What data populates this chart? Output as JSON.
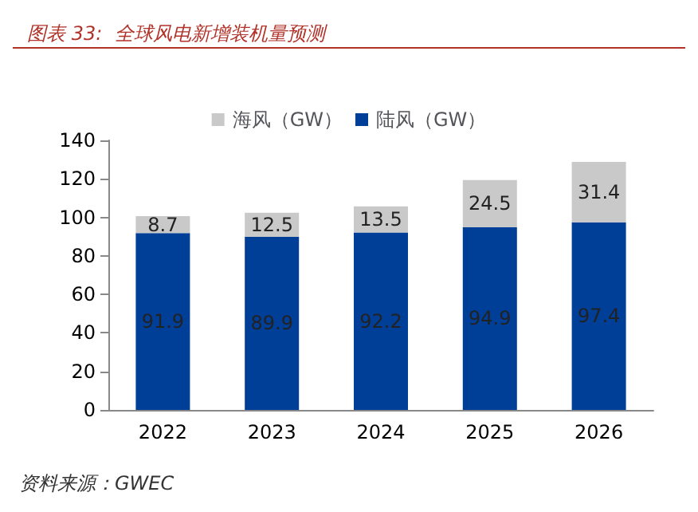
{
  "chart_data": {
    "type": "bar",
    "title": "图表 33:  全球风电新增装机量预测",
    "categories": [
      "2022",
      "2023",
      "2024",
      "2025",
      "2026"
    ],
    "series": [
      {
        "name": "陆风（GW）",
        "color": "#003f98",
        "values": [
          91.9,
          89.9,
          92.2,
          94.9,
          97.4
        ]
      },
      {
        "name": "海风（GW）",
        "color": "#c9c9c9",
        "values": [
          8.7,
          12.5,
          13.5,
          24.5,
          31.4
        ]
      }
    ],
    "stacked": true,
    "data_labels": true,
    "legend": "top",
    "ylim": [
      0,
      140
    ],
    "yticks": [
      0,
      20,
      40,
      60,
      80,
      100,
      120,
      140
    ],
    "grid": false,
    "annotations": [
      "资料来源：GWEC"
    ]
  }
}
